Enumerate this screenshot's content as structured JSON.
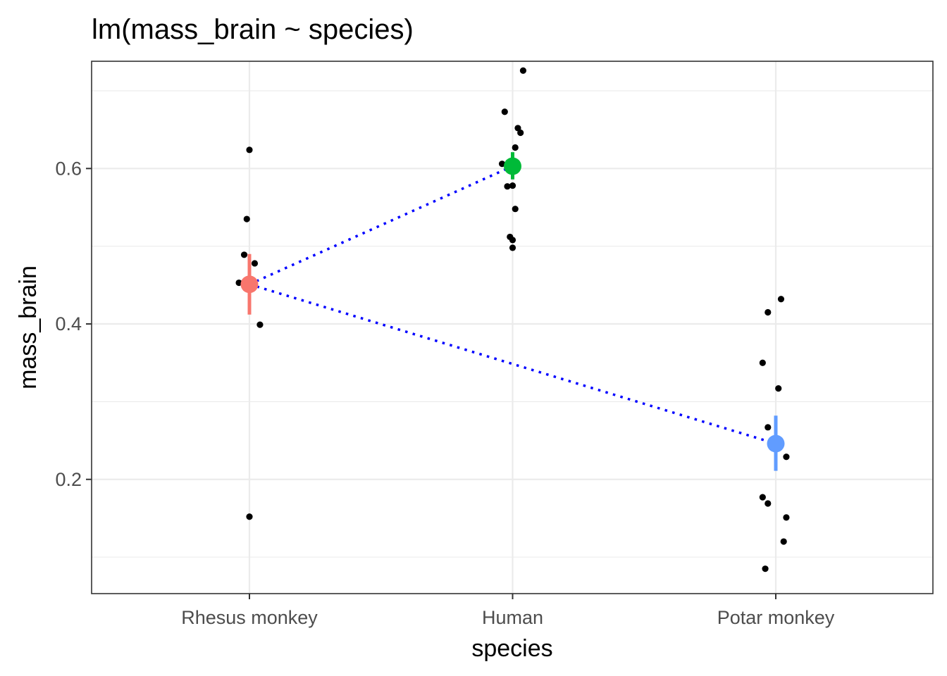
{
  "chart_data": {
    "type": "scatter",
    "title": "lm(mass_brain ~ species)",
    "xlabel": "species",
    "ylabel": "mass_brain",
    "categories": [
      "Rhesus monkey",
      "Human",
      "Potar monkey"
    ],
    "ylim": [
      0.053,
      0.738
    ],
    "y_ticks": [
      0.2,
      0.4,
      0.6
    ],
    "y_tick_labels": [
      "0.2",
      "0.4",
      "0.6"
    ],
    "grid": true,
    "legend": "none",
    "observations": [
      {
        "category": "Rhesus monkey",
        "jitter": 0.0,
        "y": 0.624
      },
      {
        "category": "Rhesus monkey",
        "jitter": -0.01,
        "y": 0.535
      },
      {
        "category": "Rhesus monkey",
        "jitter": -0.02,
        "y": 0.489
      },
      {
        "category": "Rhesus monkey",
        "jitter": 0.02,
        "y": 0.478
      },
      {
        "category": "Rhesus monkey",
        "jitter": -0.04,
        "y": 0.453
      },
      {
        "category": "Rhesus monkey",
        "jitter": 0.04,
        "y": 0.399
      },
      {
        "category": "Rhesus monkey",
        "jitter": 0.0,
        "y": 0.152
      },
      {
        "category": "Human",
        "jitter": -0.03,
        "y": 0.673
      },
      {
        "category": "Human",
        "jitter": 0.04,
        "y": 0.726
      },
      {
        "category": "Human",
        "jitter": 0.02,
        "y": 0.652
      },
      {
        "category": "Human",
        "jitter": 0.03,
        "y": 0.646
      },
      {
        "category": "Human",
        "jitter": 0.01,
        "y": 0.627
      },
      {
        "category": "Human",
        "jitter": -0.04,
        "y": 0.606
      },
      {
        "category": "Human",
        "jitter": -0.02,
        "y": 0.577
      },
      {
        "category": "Human",
        "jitter": 0.0,
        "y": 0.578
      },
      {
        "category": "Human",
        "jitter": 0.01,
        "y": 0.548
      },
      {
        "category": "Human",
        "jitter": -0.01,
        "y": 0.512
      },
      {
        "category": "Human",
        "jitter": 0.0,
        "y": 0.508
      },
      {
        "category": "Human",
        "jitter": 0.0,
        "y": 0.498
      },
      {
        "category": "Potar monkey",
        "jitter": 0.02,
        "y": 0.432
      },
      {
        "category": "Potar monkey",
        "jitter": -0.03,
        "y": 0.415
      },
      {
        "category": "Potar monkey",
        "jitter": -0.05,
        "y": 0.35
      },
      {
        "category": "Potar monkey",
        "jitter": 0.01,
        "y": 0.317
      },
      {
        "category": "Potar monkey",
        "jitter": -0.03,
        "y": 0.267
      },
      {
        "category": "Potar monkey",
        "jitter": 0.04,
        "y": 0.229
      },
      {
        "category": "Potar monkey",
        "jitter": -0.05,
        "y": 0.177
      },
      {
        "category": "Potar monkey",
        "jitter": -0.03,
        "y": 0.169
      },
      {
        "category": "Potar monkey",
        "jitter": 0.04,
        "y": 0.151
      },
      {
        "category": "Potar monkey",
        "jitter": 0.03,
        "y": 0.12
      },
      {
        "category": "Potar monkey",
        "jitter": -0.04,
        "y": 0.085
      }
    ],
    "estimates": [
      {
        "category": "Rhesus monkey",
        "mean": 0.451,
        "lower": 0.412,
        "upper": 0.49,
        "color": "#F8766D"
      },
      {
        "category": "Human",
        "mean": 0.603,
        "lower": 0.586,
        "upper": 0.621,
        "color": "#00BA38"
      },
      {
        "category": "Potar monkey",
        "mean": 0.246,
        "lower": 0.211,
        "upper": 0.282,
        "color": "#619CFF"
      }
    ],
    "contrast_lines": {
      "color": "#0000FF",
      "style": "dotted",
      "pairs": [
        [
          "Rhesus monkey",
          "Human"
        ],
        [
          "Rhesus monkey",
          "Potar monkey"
        ]
      ]
    },
    "point_color": "#000000",
    "panel_border_color": "#333333",
    "grid_color": "#EBEBEB"
  }
}
